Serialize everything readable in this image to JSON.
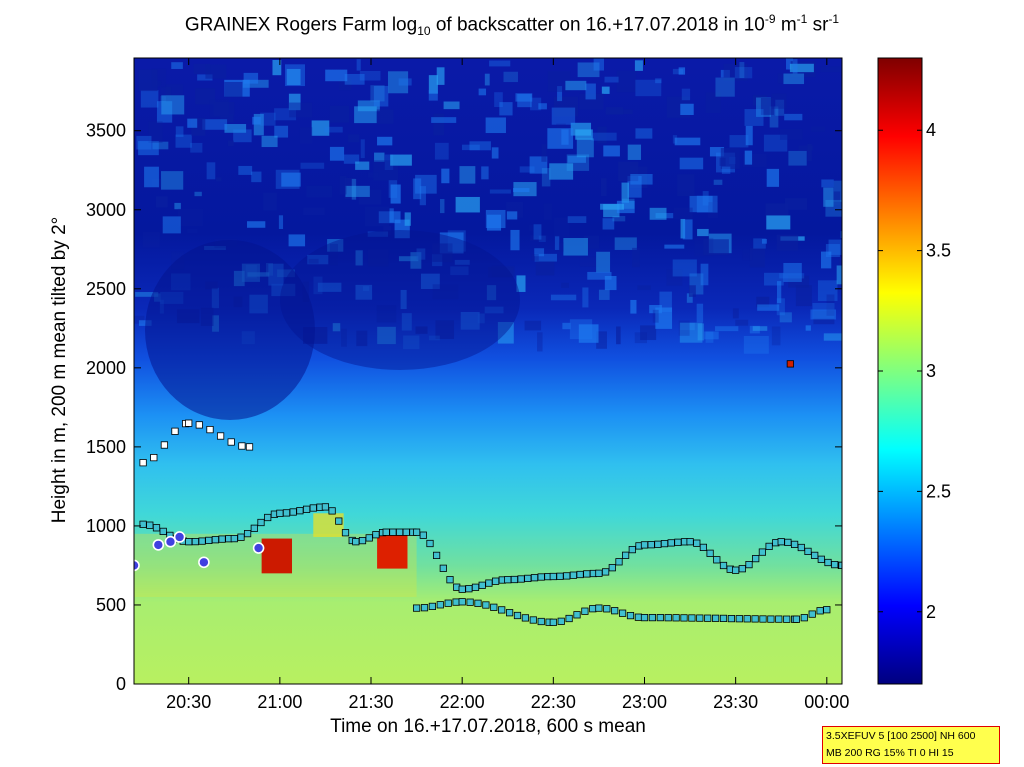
{
  "chart_data": {
    "type": "heatmap",
    "title_parts": {
      "prefix": "GRAINEX Rogers Farm log",
      "sub": "10",
      "middle": " of backscatter on 16.+17.07.2018 in 10",
      "sup1": "-9",
      "unit1": " m",
      "sup2": "-1",
      "unit2": " sr",
      "sup3": "-1"
    },
    "xlabel": "Time on 16.+17.07.2018, 600 s mean",
    "ylabel": "Height in m, 200 m mean tilted by 2°",
    "xlim": [
      "20:12",
      "00:05"
    ],
    "ylim": [
      0,
      3960
    ],
    "x_ticks": [
      "20:30",
      "21:00",
      "21:30",
      "22:00",
      "22:30",
      "23:00",
      "23:30",
      "00:00"
    ],
    "y_ticks": [
      0,
      500,
      1000,
      1500,
      2000,
      2500,
      3000,
      3500
    ],
    "colorbar": {
      "range": [
        1.7,
        4.3
      ],
      "ticks": [
        2,
        2.5,
        3,
        3.5,
        4
      ],
      "colormap": "jet"
    },
    "boundary_layer_height_m": [
      {
        "time": "20:15",
        "value": 1010
      },
      {
        "time": "20:30",
        "value": 900
      },
      {
        "time": "20:45",
        "value": 920
      },
      {
        "time": "21:00",
        "value": 1080
      },
      {
        "time": "21:15",
        "value": 1120
      },
      {
        "time": "21:25",
        "value": 900
      },
      {
        "time": "21:35",
        "value": 960
      },
      {
        "time": "21:45",
        "value": 960
      },
      {
        "time": "22:00",
        "value": 600
      },
      {
        "time": "22:15",
        "value": 660
      },
      {
        "time": "22:30",
        "value": 680
      },
      {
        "time": "22:45",
        "value": 700
      },
      {
        "time": "23:00",
        "value": 880
      },
      {
        "time": "23:15",
        "value": 900
      },
      {
        "time": "23:30",
        "value": 720
      },
      {
        "time": "23:45",
        "value": 900
      },
      {
        "time": "00:05",
        "value": 750
      }
    ],
    "lower_layer_height_m": [
      {
        "time": "21:45",
        "value": 480
      },
      {
        "time": "22:00",
        "value": 520
      },
      {
        "time": "22:30",
        "value": 390
      },
      {
        "time": "22:45",
        "value": 480
      },
      {
        "time": "23:00",
        "value": 420
      },
      {
        "time": "23:50",
        "value": 410
      },
      {
        "time": "00:00",
        "value": 470
      }
    ],
    "upper_layer_height_m": [
      {
        "time": "20:15",
        "value": 1400
      },
      {
        "time": "20:30",
        "value": 1650
      },
      {
        "time": "20:50",
        "value": 1500
      }
    ]
  },
  "info_box": {
    "line1": "3.5XEFUV 5 [100 2500] NH 600",
    "line2": "MB 200 RG 15% TI 0 HI 15"
  },
  "colors": {
    "background": "#ffffff",
    "marker_cyan": "#40c0d0",
    "marker_white": "#ffffff",
    "marker_red": "#d02000",
    "marker_blue": "#4040e0",
    "info_box_fill": "#ffff4d",
    "info_box_border": "#e00000"
  }
}
